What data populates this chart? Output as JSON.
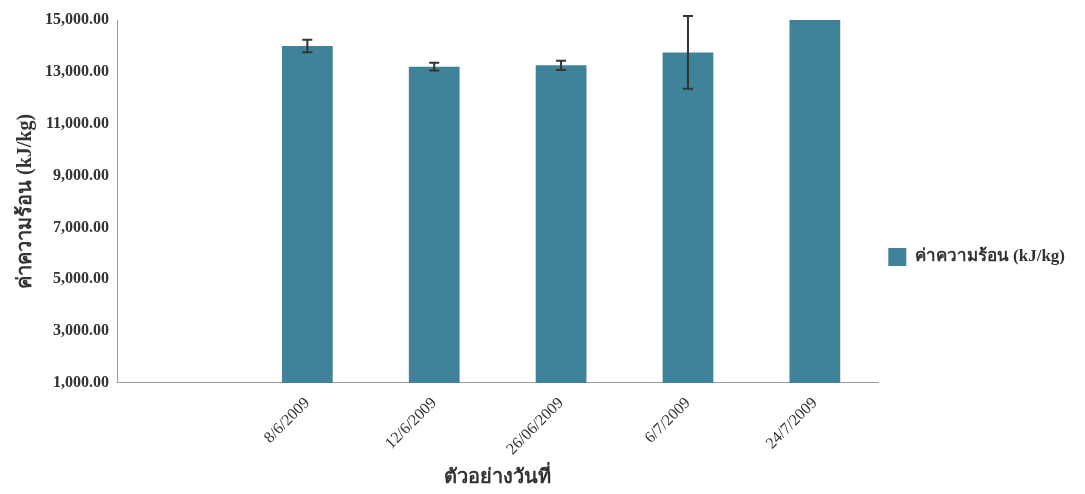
{
  "chart_data": {
    "type": "bar",
    "xlabel": "ตัวอย่างวันที่",
    "ylabel": "ค่าความร้อน (kJ/kg)",
    "categories": [
      null,
      "8/6/2009",
      "12/6/2009",
      "26/06/2009",
      "6/7/2009",
      "24/7/2009"
    ],
    "series": [
      {
        "name": "ค่าความร้อน (kJ/kg)",
        "color": "#3f8299",
        "values": [
          null,
          14000,
          13200,
          13250,
          13750,
          15000
        ],
        "errors": [
          null,
          240,
          150,
          180,
          1400,
          null
        ]
      }
    ],
    "ylim": [
      1000,
      15000
    ],
    "yticks": [
      {
        "value": 1000,
        "label": "1,000.00"
      },
      {
        "value": 3000,
        "label": "3,000.00"
      },
      {
        "value": 5000,
        "label": "5,000.00"
      },
      {
        "value": 7000,
        "label": "7,000.00"
      },
      {
        "value": 9000,
        "label": "9,000.00"
      },
      {
        "value": 11000,
        "label": "11,000.00"
      },
      {
        "value": 13000,
        "label": "13,000.00"
      },
      {
        "value": 15000,
        "label": "15,000.00"
      }
    ],
    "grid": false,
    "legend": "right"
  }
}
